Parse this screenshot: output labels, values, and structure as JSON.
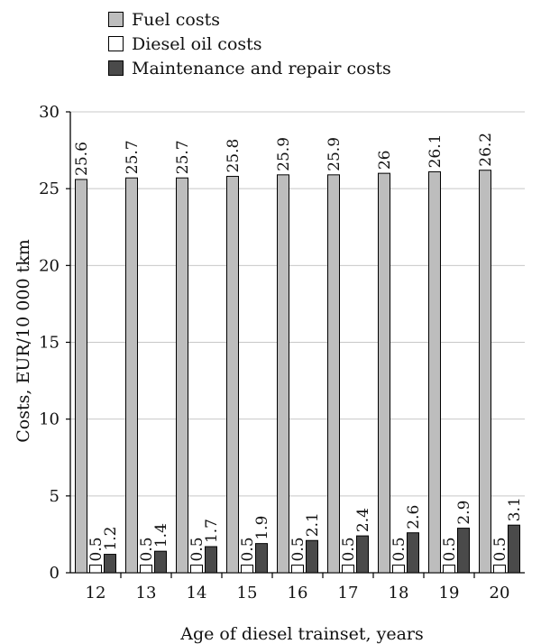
{
  "colors": {
    "fuel": "#bdbdbd",
    "diesel_oil": "#ffffff",
    "maintenance": "#4a4a4a",
    "grid": "#c8c8c8",
    "axis": "#000000"
  },
  "chart_data": {
    "type": "bar",
    "title": "",
    "xlabel": "Age of diesel trainset, years",
    "ylabel": "Costs, EUR/10 000 tkm",
    "ylim": [
      0,
      30
    ],
    "yticks": [
      0,
      5,
      10,
      15,
      20,
      25,
      30
    ],
    "grid": true,
    "legend_position": "top-left",
    "categories": [
      "12",
      "13",
      "14",
      "15",
      "16",
      "17",
      "18",
      "19",
      "20"
    ],
    "series": [
      {
        "name": "Fuel costs",
        "values": [
          25.6,
          25.7,
          25.7,
          25.8,
          25.9,
          25.9,
          26,
          26.1,
          26.2
        ]
      },
      {
        "name": "Diesel oil costs",
        "values": [
          0.5,
          0.5,
          0.5,
          0.5,
          0.5,
          0.5,
          0.5,
          0.5,
          0.5
        ]
      },
      {
        "name": "Maintenance and repair costs",
        "values": [
          1.2,
          1.4,
          1.7,
          1.9,
          2.1,
          2.4,
          2.6,
          2.9,
          3.1
        ]
      }
    ]
  }
}
